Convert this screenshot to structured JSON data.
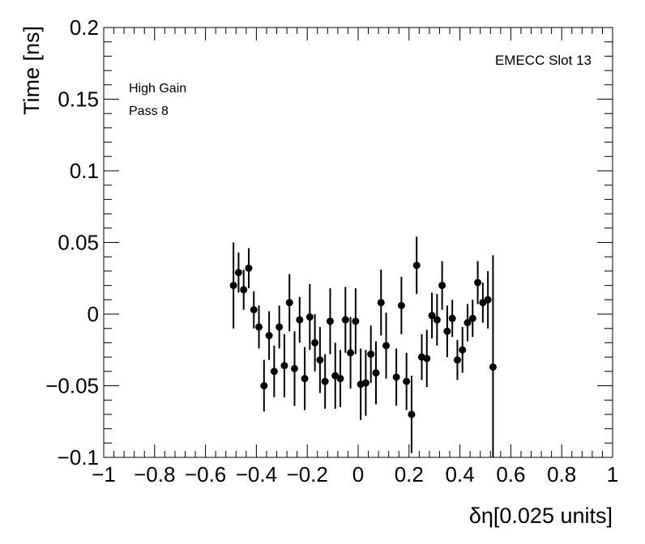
{
  "chart_data": {
    "type": "scatter",
    "xlabel": "δη[0.025 units]",
    "ylabel": "Time [ns]",
    "xlim": [
      -1,
      1
    ],
    "ylim": [
      -0.1,
      0.2
    ],
    "x_ticks": [
      -1,
      -0.8,
      -0.6,
      -0.4,
      -0.2,
      0,
      0.2,
      0.4,
      0.6,
      0.8,
      1
    ],
    "x_tick_labels": [
      "−1",
      "−0.8",
      "−0.6",
      "−0.4",
      "−0.2",
      "0",
      "0.2",
      "0.4",
      "0.6",
      "0.8",
      "1"
    ],
    "y_ticks": [
      -0.1,
      -0.05,
      0,
      0.05,
      0.1,
      0.15,
      0.2
    ],
    "y_tick_labels": [
      "−0.1",
      "−0.05",
      "0",
      "0.05",
      "0.1",
      "0.15",
      "0.2"
    ],
    "annotations": {
      "detector": "EMECC Slot 13",
      "gain": "High Gain",
      "pass": "Pass 8"
    },
    "grid": false,
    "marker_color": "#000000",
    "points": [
      {
        "x": -0.49,
        "y": 0.02,
        "err": 0.03
      },
      {
        "x": -0.47,
        "y": 0.029,
        "err": 0.014
      },
      {
        "x": -0.45,
        "y": 0.017,
        "err": 0.014
      },
      {
        "x": -0.43,
        "y": 0.032,
        "err": 0.014
      },
      {
        "x": -0.41,
        "y": 0.003,
        "err": 0.013
      },
      {
        "x": -0.39,
        "y": -0.009,
        "err": 0.015
      },
      {
        "x": -0.37,
        "y": -0.05,
        "err": 0.018
      },
      {
        "x": -0.35,
        "y": -0.015,
        "err": 0.017
      },
      {
        "x": -0.33,
        "y": -0.04,
        "err": 0.018
      },
      {
        "x": -0.31,
        "y": -0.009,
        "err": 0.015
      },
      {
        "x": -0.29,
        "y": -0.036,
        "err": 0.022
      },
      {
        "x": -0.27,
        "y": 0.008,
        "err": 0.02
      },
      {
        "x": -0.25,
        "y": -0.038,
        "err": 0.026
      },
      {
        "x": -0.23,
        "y": -0.004,
        "err": 0.016
      },
      {
        "x": -0.21,
        "y": -0.045,
        "err": 0.022
      },
      {
        "x": -0.19,
        "y": -0.002,
        "err": 0.023
      },
      {
        "x": -0.17,
        "y": -0.02,
        "err": 0.02
      },
      {
        "x": -0.15,
        "y": -0.032,
        "err": 0.023
      },
      {
        "x": -0.13,
        "y": -0.047,
        "err": 0.019
      },
      {
        "x": -0.11,
        "y": -0.005,
        "err": 0.023
      },
      {
        "x": -0.09,
        "y": -0.043,
        "err": 0.023
      },
      {
        "x": -0.07,
        "y": -0.045,
        "err": 0.02
      },
      {
        "x": -0.05,
        "y": -0.004,
        "err": 0.023
      },
      {
        "x": -0.03,
        "y": -0.027,
        "err": 0.025
      },
      {
        "x": -0.01,
        "y": -0.005,
        "err": 0.023
      },
      {
        "x": 0.01,
        "y": -0.049,
        "err": 0.025
      },
      {
        "x": 0.03,
        "y": -0.048,
        "err": 0.023
      },
      {
        "x": 0.05,
        "y": -0.028,
        "err": 0.02
      },
      {
        "x": 0.07,
        "y": -0.041,
        "err": 0.022
      },
      {
        "x": 0.09,
        "y": 0.008,
        "err": 0.023
      },
      {
        "x": 0.11,
        "y": -0.022,
        "err": 0.023
      },
      {
        "x": 0.15,
        "y": -0.044,
        "err": 0.02
      },
      {
        "x": 0.17,
        "y": 0.006,
        "err": 0.02
      },
      {
        "x": 0.19,
        "y": -0.047,
        "err": 0.02
      },
      {
        "x": 0.21,
        "y": -0.07,
        "err": 0.027
      },
      {
        "x": 0.23,
        "y": 0.034,
        "err": 0.02
      },
      {
        "x": 0.25,
        "y": -0.03,
        "err": 0.016
      },
      {
        "x": 0.27,
        "y": -0.031,
        "err": 0.02
      },
      {
        "x": 0.29,
        "y": -0.001,
        "err": 0.016
      },
      {
        "x": 0.31,
        "y": -0.004,
        "err": 0.018
      },
      {
        "x": 0.33,
        "y": 0.02,
        "err": 0.017
      },
      {
        "x": 0.35,
        "y": -0.012,
        "err": 0.018
      },
      {
        "x": 0.37,
        "y": -0.003,
        "err": 0.013
      },
      {
        "x": 0.39,
        "y": -0.032,
        "err": 0.014
      },
      {
        "x": 0.41,
        "y": -0.025,
        "err": 0.016
      },
      {
        "x": 0.43,
        "y": -0.006,
        "err": 0.013
      },
      {
        "x": 0.45,
        "y": -0.003,
        "err": 0.013
      },
      {
        "x": 0.47,
        "y": 0.022,
        "err": 0.015
      },
      {
        "x": 0.49,
        "y": 0.008,
        "err": 0.014
      },
      {
        "x": 0.51,
        "y": 0.01,
        "err": 0.02
      },
      {
        "x": 0.53,
        "y": -0.037,
        "err": 0.078
      }
    ]
  }
}
